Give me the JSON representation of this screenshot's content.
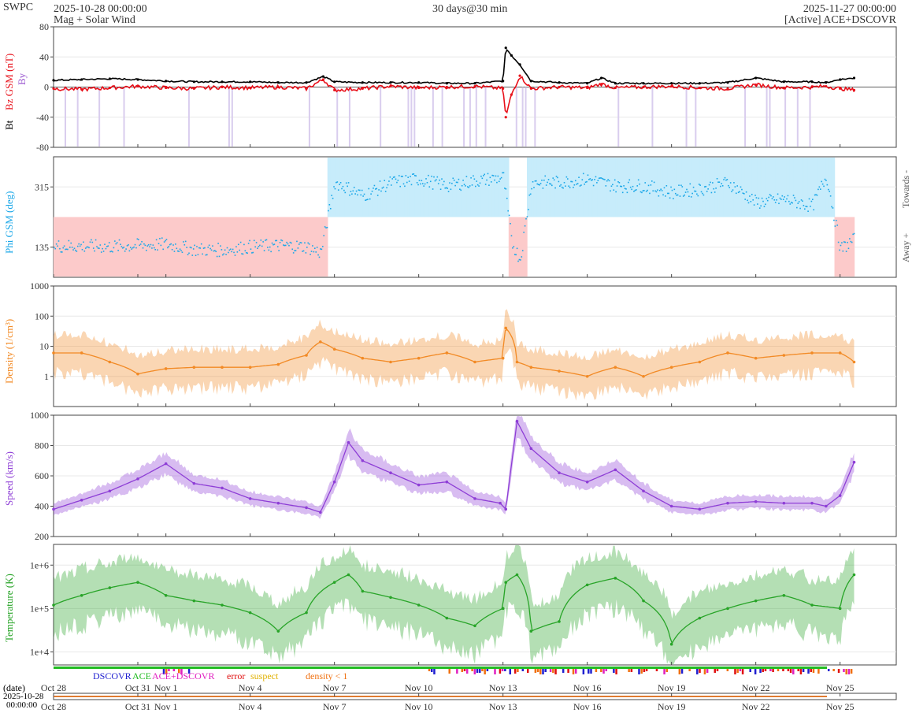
{
  "header": {
    "org": "SWPC",
    "start": "2025-10-28 00:00:00",
    "span": "30 days@30 min",
    "end": "2025-11-27 00:00:00",
    "product": "Mag + Solar Wind",
    "source": "[Active] ACE+DSCOVR"
  },
  "colors": {
    "bt": "#000000",
    "bz": "#e8101a",
    "by": "#9b59d0",
    "phi": "#1aa7e8",
    "phi_towards_fill": "#c7ecfb",
    "phi_away_fill": "#fccaca",
    "density": "#f28a25",
    "speed": "#8e3ed6",
    "temperature": "#28a428",
    "flag_dscovr": "#2020d0",
    "flag_ace": "#22bb22",
    "flag_combined": "#e020c0",
    "flag_error": "#e01010",
    "flag_suspect": "#e0b000",
    "flag_density_low": "#f07010"
  },
  "time_axis": {
    "start_day": 0,
    "end_day": 30,
    "ticks": [
      {
        "day": 0,
        "label": "Oct 28"
      },
      {
        "day": 3,
        "label": "Oct 31"
      },
      {
        "day": 4,
        "label": "Nov 1"
      },
      {
        "day": 7,
        "label": "Nov 4"
      },
      {
        "day": 10,
        "label": "Nov 7"
      },
      {
        "day": 13,
        "label": "Nov 10"
      },
      {
        "day": 16,
        "label": "Nov 13"
      },
      {
        "day": 19,
        "label": "Nov 16"
      },
      {
        "day": 22,
        "label": "Nov 19"
      },
      {
        "day": 25,
        "label": "Nov 22"
      },
      {
        "day": 28,
        "label": "Nov 25"
      }
    ],
    "date_label": "(date)",
    "date_value": "2025-10-28",
    "time_value": "00:00:00",
    "bottom_ticks": [
      {
        "day": 0,
        "label": "Oct 28"
      },
      {
        "day": 3,
        "label": "Oct 31"
      },
      {
        "day": 4,
        "label": "Nov 1"
      },
      {
        "day": 7,
        "label": "Nov 4"
      },
      {
        "day": 10,
        "label": "Nov 7"
      },
      {
        "day": 13,
        "label": "Nov 10"
      },
      {
        "day": 16,
        "label": "Nov 13"
      },
      {
        "day": 19,
        "label": "Nov 16"
      },
      {
        "day": 22,
        "label": "Nov 19"
      },
      {
        "day": 25,
        "label": "Nov 22"
      },
      {
        "day": 28,
        "label": "Nov 25"
      }
    ]
  },
  "flag_legend": [
    {
      "label": "DSCOVR",
      "color_key": "flag_dscovr"
    },
    {
      "label": "ACE",
      "color_key": "flag_ace"
    },
    {
      "label": "ACE+DSCOVR",
      "color_key": "flag_combined"
    },
    {
      "label": "error",
      "color_key": "flag_error"
    },
    {
      "label": "suspect",
      "color_key": "flag_suspect"
    },
    {
      "label": "density < 1",
      "color_key": "flag_density_low"
    }
  ],
  "chart_data": [
    {
      "type": "line",
      "id": "mag",
      "ylabel_parts": [
        "Bt",
        "Bz GSM (nT)",
        "By"
      ],
      "ylim": [
        -80,
        80
      ],
      "yticks": [
        -80,
        -40,
        0,
        40,
        80
      ],
      "grid": true,
      "x_unit": "days since 2025-10-28 00:00",
      "series": [
        {
          "name": "Bt",
          "x": [
            0,
            1,
            2,
            3,
            4,
            5,
            6,
            7,
            8,
            9,
            9.6,
            10,
            11,
            12,
            13,
            14,
            15,
            16,
            16.1,
            16.3,
            16.6,
            17,
            18,
            19,
            19.5,
            20,
            21,
            22,
            23,
            24,
            25,
            26,
            27,
            27.5,
            28,
            28.5
          ],
          "y": [
            9,
            10,
            11,
            10,
            8,
            7,
            7,
            7,
            6,
            6,
            14,
            7,
            6,
            6,
            6,
            5,
            5,
            8,
            52,
            42,
            30,
            8,
            6,
            5,
            12,
            5,
            5,
            5,
            5,
            6,
            12,
            7,
            7,
            6,
            10,
            12
          ]
        },
        {
          "name": "Bz",
          "x": [
            0,
            1,
            2,
            3,
            4,
            5,
            6,
            7,
            8,
            9,
            9.6,
            10,
            11,
            12,
            13,
            14,
            15,
            16,
            16.1,
            16.3,
            16.6,
            17,
            18,
            19,
            19.5,
            20,
            21,
            22,
            23,
            24,
            25,
            26,
            27,
            27.5,
            28,
            28.5
          ],
          "y": [
            -2,
            -3,
            -1,
            1,
            -1,
            -2,
            0,
            -1,
            0,
            -2,
            10,
            -4,
            -2,
            1,
            -1,
            0,
            1,
            -2,
            -40,
            -10,
            15,
            -2,
            0,
            -1,
            4,
            -1,
            0,
            1,
            -1,
            -2,
            3,
            -1,
            0,
            1,
            -2,
            -4
          ]
        }
      ]
    },
    {
      "type": "scatter",
      "id": "phi",
      "ylabel": "Phi GSM (deg)",
      "right_labels": [
        "Towards -",
        "Away +"
      ],
      "ylim": [
        45,
        405
      ],
      "yticks": [
        135,
        315
      ],
      "grid": true,
      "series": [
        {
          "name": "Phi",
          "x": [
            0,
            1,
            2,
            3,
            4,
            5,
            6,
            7,
            8,
            9,
            9.5,
            10,
            10.5,
            11,
            12,
            13,
            14,
            15,
            16,
            16.3,
            16.6,
            17,
            18,
            19,
            20,
            21,
            22,
            23,
            24,
            25,
            26,
            27,
            27.5,
            28,
            28.5
          ],
          "y": [
            140,
            140,
            138,
            142,
            145,
            130,
            128,
            138,
            142,
            138,
            120,
            330,
            312,
            290,
            330,
            340,
            320,
            335,
            345,
            150,
            100,
            330,
            330,
            340,
            320,
            320,
            300,
            310,
            330,
            270,
            280,
            260,
            350,
            130,
            160
          ]
        }
      ]
    },
    {
      "type": "area",
      "id": "density",
      "ylabel": "Density (1/cm³)",
      "yscale": "log",
      "ylim": [
        0.1,
        1000
      ],
      "yticks": [
        1,
        10,
        100,
        1000
      ],
      "grid": true,
      "series": [
        {
          "name": "Density",
          "x": [
            0,
            1,
            2,
            3,
            4,
            5,
            6,
            7,
            8,
            9,
            9.5,
            10,
            11,
            12,
            13,
            14,
            15,
            16,
            16.1,
            16.5,
            17,
            18,
            19,
            20,
            21,
            22,
            23,
            24,
            25,
            26,
            27,
            28,
            28.5
          ],
          "y": [
            6,
            6,
            3,
            1.2,
            1.8,
            2,
            2,
            2,
            2.5,
            5,
            14,
            8,
            4,
            3,
            4,
            6,
            3,
            4,
            40,
            3,
            2,
            1.5,
            1,
            2,
            1,
            2,
            3,
            6,
            4,
            5,
            6,
            6,
            3
          ]
        }
      ]
    },
    {
      "type": "area",
      "id": "speed",
      "ylabel": "Speed (km/s)",
      "ylim": [
        200,
        1000
      ],
      "yticks": [
        200,
        400,
        600,
        800,
        1000
      ],
      "grid": true,
      "series": [
        {
          "name": "Speed",
          "x": [
            0,
            1,
            2,
            3,
            4,
            5,
            6,
            7,
            8,
            9,
            9.5,
            10,
            10.5,
            11,
            12,
            13,
            14,
            15,
            15.9,
            16.1,
            16.5,
            17,
            18,
            19,
            20,
            21,
            22,
            23,
            24,
            25,
            26,
            27,
            27.5,
            28,
            28.5
          ],
          "y": [
            380,
            440,
            500,
            580,
            680,
            550,
            520,
            450,
            420,
            390,
            360,
            560,
            820,
            700,
            620,
            540,
            560,
            450,
            420,
            380,
            960,
            780,
            620,
            560,
            640,
            500,
            400,
            380,
            420,
            430,
            420,
            420,
            400,
            470,
            690
          ]
        }
      ]
    },
    {
      "type": "area",
      "id": "temperature",
      "ylabel": "Temperature (K)",
      "yscale": "log",
      "ylim": [
        5000,
        3000000
      ],
      "yticks": [
        10000,
        100000,
        1000000
      ],
      "ytick_labels": [
        "1e+4",
        "1e+5",
        "1e+6"
      ],
      "grid": true,
      "series": [
        {
          "name": "Temperature",
          "x": [
            0,
            1,
            2,
            3,
            4,
            5,
            6,
            7,
            8,
            9,
            10,
            10.5,
            11,
            12,
            13,
            14,
            15,
            16,
            16.1,
            16.5,
            17,
            18,
            19,
            20,
            21,
            22,
            23,
            24,
            25,
            26,
            27,
            28,
            28.5
          ],
          "y": [
            120000,
            200000,
            300000,
            400000,
            200000,
            150000,
            120000,
            80000,
            30000,
            80000,
            400000,
            600000,
            250000,
            180000,
            120000,
            60000,
            40000,
            100000,
            400000,
            600000,
            30000,
            50000,
            350000,
            500000,
            150000,
            15000,
            60000,
            100000,
            150000,
            200000,
            120000,
            100000,
            600000
          ]
        }
      ]
    }
  ]
}
